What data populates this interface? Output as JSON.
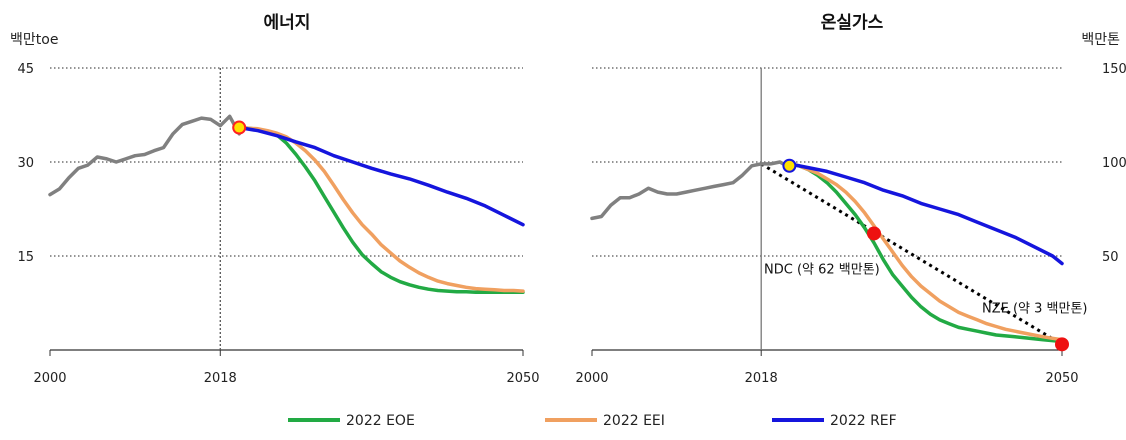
{
  "chart_data": [
    {
      "type": "line",
      "title": "에너지",
      "ylabel": "백만toe",
      "ylim": [
        0,
        45
      ],
      "yticks": [
        "45",
        "30",
        "15"
      ],
      "xticks": [
        "2000",
        "2018",
        "2050"
      ],
      "xlim": [
        2000,
        2050
      ],
      "grid": "horizontal dotted",
      "vline": {
        "x": 2018,
        "style": "dotted"
      },
      "series": [
        {
          "name": "history",
          "color": "#808080",
          "x": [
            2000,
            2001,
            2002,
            2003,
            2004,
            2005,
            2006,
            2007,
            2008,
            2009,
            2010,
            2011,
            2012,
            2013,
            2014,
            2015,
            2016,
            2017,
            2018,
            2019,
            2020
          ],
          "y": [
            24.8,
            25.7,
            27.5,
            29.0,
            29.5,
            30.8,
            30.5,
            30.0,
            30.5,
            31.0,
            31.2,
            31.8,
            32.3,
            34.5,
            36.0,
            36.5,
            37.0,
            36.8,
            35.8,
            37.3,
            34.5
          ]
        },
        {
          "name": "2022 EOE",
          "color": "#22aa44",
          "x": [
            2020,
            2021,
            2022,
            2023,
            2024,
            2025,
            2026,
            2027,
            2028,
            2029,
            2030,
            2031,
            2032,
            2033,
            2034,
            2035,
            2036,
            2037,
            2038,
            2039,
            2040,
            2041,
            2042,
            2043,
            2044,
            2045,
            2046,
            2047,
            2048,
            2049,
            2050
          ],
          "y": [
            35.5,
            35.4,
            35.2,
            34.8,
            34.3,
            33.0,
            31.2,
            29.2,
            27.0,
            24.5,
            22.0,
            19.5,
            17.2,
            15.2,
            13.8,
            12.5,
            11.6,
            10.9,
            10.4,
            10.0,
            9.7,
            9.5,
            9.4,
            9.3,
            9.3,
            9.2,
            9.2,
            9.2,
            9.2,
            9.2,
            9.2
          ]
        },
        {
          "name": "2022 EEI",
          "color": "#f0a060",
          "x": [
            2020,
            2021,
            2022,
            2023,
            2024,
            2025,
            2026,
            2027,
            2028,
            2029,
            2030,
            2031,
            2032,
            2033,
            2034,
            2035,
            2036,
            2037,
            2038,
            2039,
            2040,
            2041,
            2042,
            2043,
            2044,
            2045,
            2046,
            2047,
            2048,
            2049,
            2050
          ],
          "y": [
            35.5,
            35.4,
            35.3,
            35.0,
            34.6,
            34.0,
            33.0,
            31.8,
            30.3,
            28.5,
            26.3,
            24.0,
            21.9,
            20.0,
            18.5,
            16.8,
            15.5,
            14.2,
            13.2,
            12.3,
            11.6,
            11.0,
            10.6,
            10.3,
            10.0,
            9.8,
            9.7,
            9.6,
            9.5,
            9.5,
            9.4
          ]
        },
        {
          "name": "2022 REF",
          "color": "#1515dd",
          "x": [
            2020,
            2022,
            2024,
            2026,
            2028,
            2030,
            2032,
            2034,
            2036,
            2038,
            2040,
            2042,
            2044,
            2046,
            2048,
            2050
          ],
          "y": [
            35.5,
            35.0,
            34.2,
            33.2,
            32.3,
            31.0,
            30.0,
            29.0,
            28.1,
            27.3,
            26.3,
            25.2,
            24.2,
            23.0,
            21.5,
            20.0
          ]
        }
      ],
      "markers": [
        {
          "x": 2020,
          "y": 35.5,
          "fill": "#ffe000",
          "stroke": "#ff2020"
        }
      ]
    },
    {
      "type": "line",
      "title": "온실가스",
      "ylabel": "백만톤",
      "ylim": [
        0,
        150
      ],
      "yticks": [
        "150",
        "100",
        "50"
      ],
      "xticks": [
        "2000",
        "2018",
        "2050"
      ],
      "xlim": [
        2000,
        2050
      ],
      "grid": "horizontal dotted",
      "vline": {
        "x": 2018,
        "style": "solid"
      },
      "series": [
        {
          "name": "history",
          "color": "#808080",
          "x": [
            2000,
            2001,
            2002,
            2003,
            2004,
            2005,
            2006,
            2007,
            2008,
            2009,
            2010,
            2011,
            2012,
            2013,
            2014,
            2015,
            2016,
            2017,
            2018,
            2019,
            2020,
            2021
          ],
          "y": [
            70,
            71,
            77,
            81,
            81,
            83,
            86,
            84,
            83,
            83,
            84,
            85,
            86,
            87,
            88,
            89,
            93,
            98,
            99,
            99,
            100,
            97
          ]
        },
        {
          "name": "2022 EOE",
          "color": "#22aa44",
          "x": [
            2021,
            2022,
            2023,
            2024,
            2025,
            2026,
            2027,
            2028,
            2029,
            2030,
            2031,
            2032,
            2033,
            2034,
            2035,
            2036,
            2037,
            2038,
            2039,
            2040,
            2041,
            2042,
            2043,
            2044,
            2045,
            2046,
            2047,
            2048,
            2049,
            2050
          ],
          "y": [
            99,
            98,
            96,
            93,
            89,
            84,
            78,
            72,
            65,
            57,
            48,
            40,
            34,
            28,
            23,
            19,
            16,
            14,
            12,
            11,
            10,
            9,
            8,
            7.5,
            7,
            6.5,
            6,
            5.5,
            5,
            4.5
          ]
        },
        {
          "name": "2022 EEI",
          "color": "#f0a060",
          "x": [
            2021,
            2022,
            2023,
            2024,
            2025,
            2026,
            2027,
            2028,
            2029,
            2030,
            2031,
            2032,
            2033,
            2034,
            2035,
            2036,
            2037,
            2038,
            2039,
            2040,
            2041,
            2042,
            2043,
            2044,
            2045,
            2046,
            2047,
            2048,
            2049,
            2050
          ],
          "y": [
            99,
            98,
            96,
            94,
            91,
            88,
            84,
            79,
            73,
            66,
            59,
            52,
            45,
            39,
            34,
            30,
            26,
            23,
            20,
            18,
            16,
            14,
            12.5,
            11,
            10,
            9,
            8,
            7,
            6.2,
            5.5
          ]
        },
        {
          "name": "2022 REF",
          "color": "#1515dd",
          "x": [
            2021,
            2023,
            2025,
            2027,
            2029,
            2031,
            2033,
            2035,
            2037,
            2039,
            2041,
            2043,
            2045,
            2047,
            2049,
            2050
          ],
          "y": [
            99,
            97,
            95,
            92,
            89,
            85,
            82,
            78,
            75,
            72,
            68,
            64,
            60,
            55,
            50,
            46
          ]
        }
      ],
      "target_line": {
        "x": [
          2018,
          2050
        ],
        "y": [
          99,
          3
        ],
        "style": "dotted",
        "color": "#000000"
      },
      "markers": [
        {
          "x": 2021,
          "y": 98,
          "fill": "#ffe000",
          "stroke": "#1515dd"
        },
        {
          "x": 2030,
          "y": 62,
          "fill": "#ee1111",
          "stroke": "#ee1111"
        },
        {
          "x": 2050,
          "y": 3,
          "fill": "#ee1111",
          "stroke": "#ee1111"
        }
      ],
      "annotations": [
        {
          "text": "NDC (약 62 백만톤)",
          "x": 2030,
          "y": 62
        },
        {
          "text": "NZE (약 3 백만톤)",
          "x": 2050,
          "y": 3
        }
      ]
    }
  ],
  "legend": {
    "placement": "bottom-center",
    "items": [
      {
        "label": "2022 EOE",
        "color": "#22aa44"
      },
      {
        "label": "2022 EEI",
        "color": "#f0a060"
      },
      {
        "label": "2022 REF",
        "color": "#1515dd"
      }
    ]
  }
}
